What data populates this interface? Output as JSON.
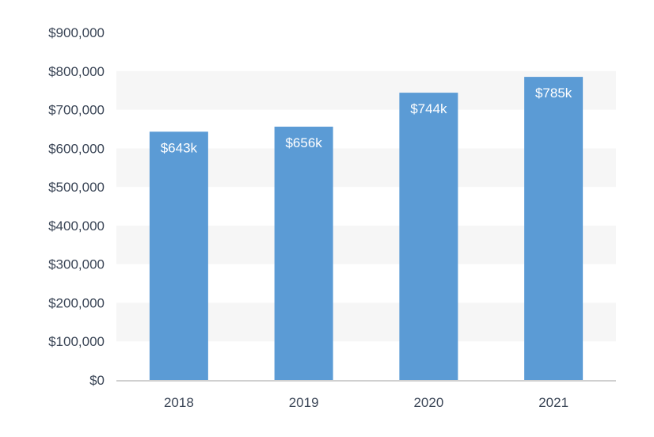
{
  "colors": {
    "bar": "#5b9bd5",
    "band_light": "#ffffff",
    "band_dark": "#f6f6f6",
    "axis": "#d0d0d0",
    "tick_text": "#3a4556",
    "label_text": "#ffffff"
  },
  "chart_data": {
    "type": "bar",
    "title": "",
    "xlabel": "",
    "ylabel": "",
    "categories": [
      "2018",
      "2019",
      "2020",
      "2021"
    ],
    "values": [
      643000,
      656000,
      744000,
      785000
    ],
    "data_labels": [
      "$643k",
      "$656k",
      "$744k",
      "$785k"
    ],
    "ylim": [
      0,
      900000
    ],
    "y_ticks": [
      0,
      100000,
      200000,
      300000,
      400000,
      500000,
      600000,
      700000,
      800000,
      900000
    ],
    "y_tick_labels": [
      "$0",
      "$100,000",
      "$200,000",
      "$300,000",
      "$400,000",
      "$500,000",
      "$600,000",
      "$700,000",
      "$800,000",
      "$900,000"
    ],
    "grid": true,
    "legend": "none"
  }
}
